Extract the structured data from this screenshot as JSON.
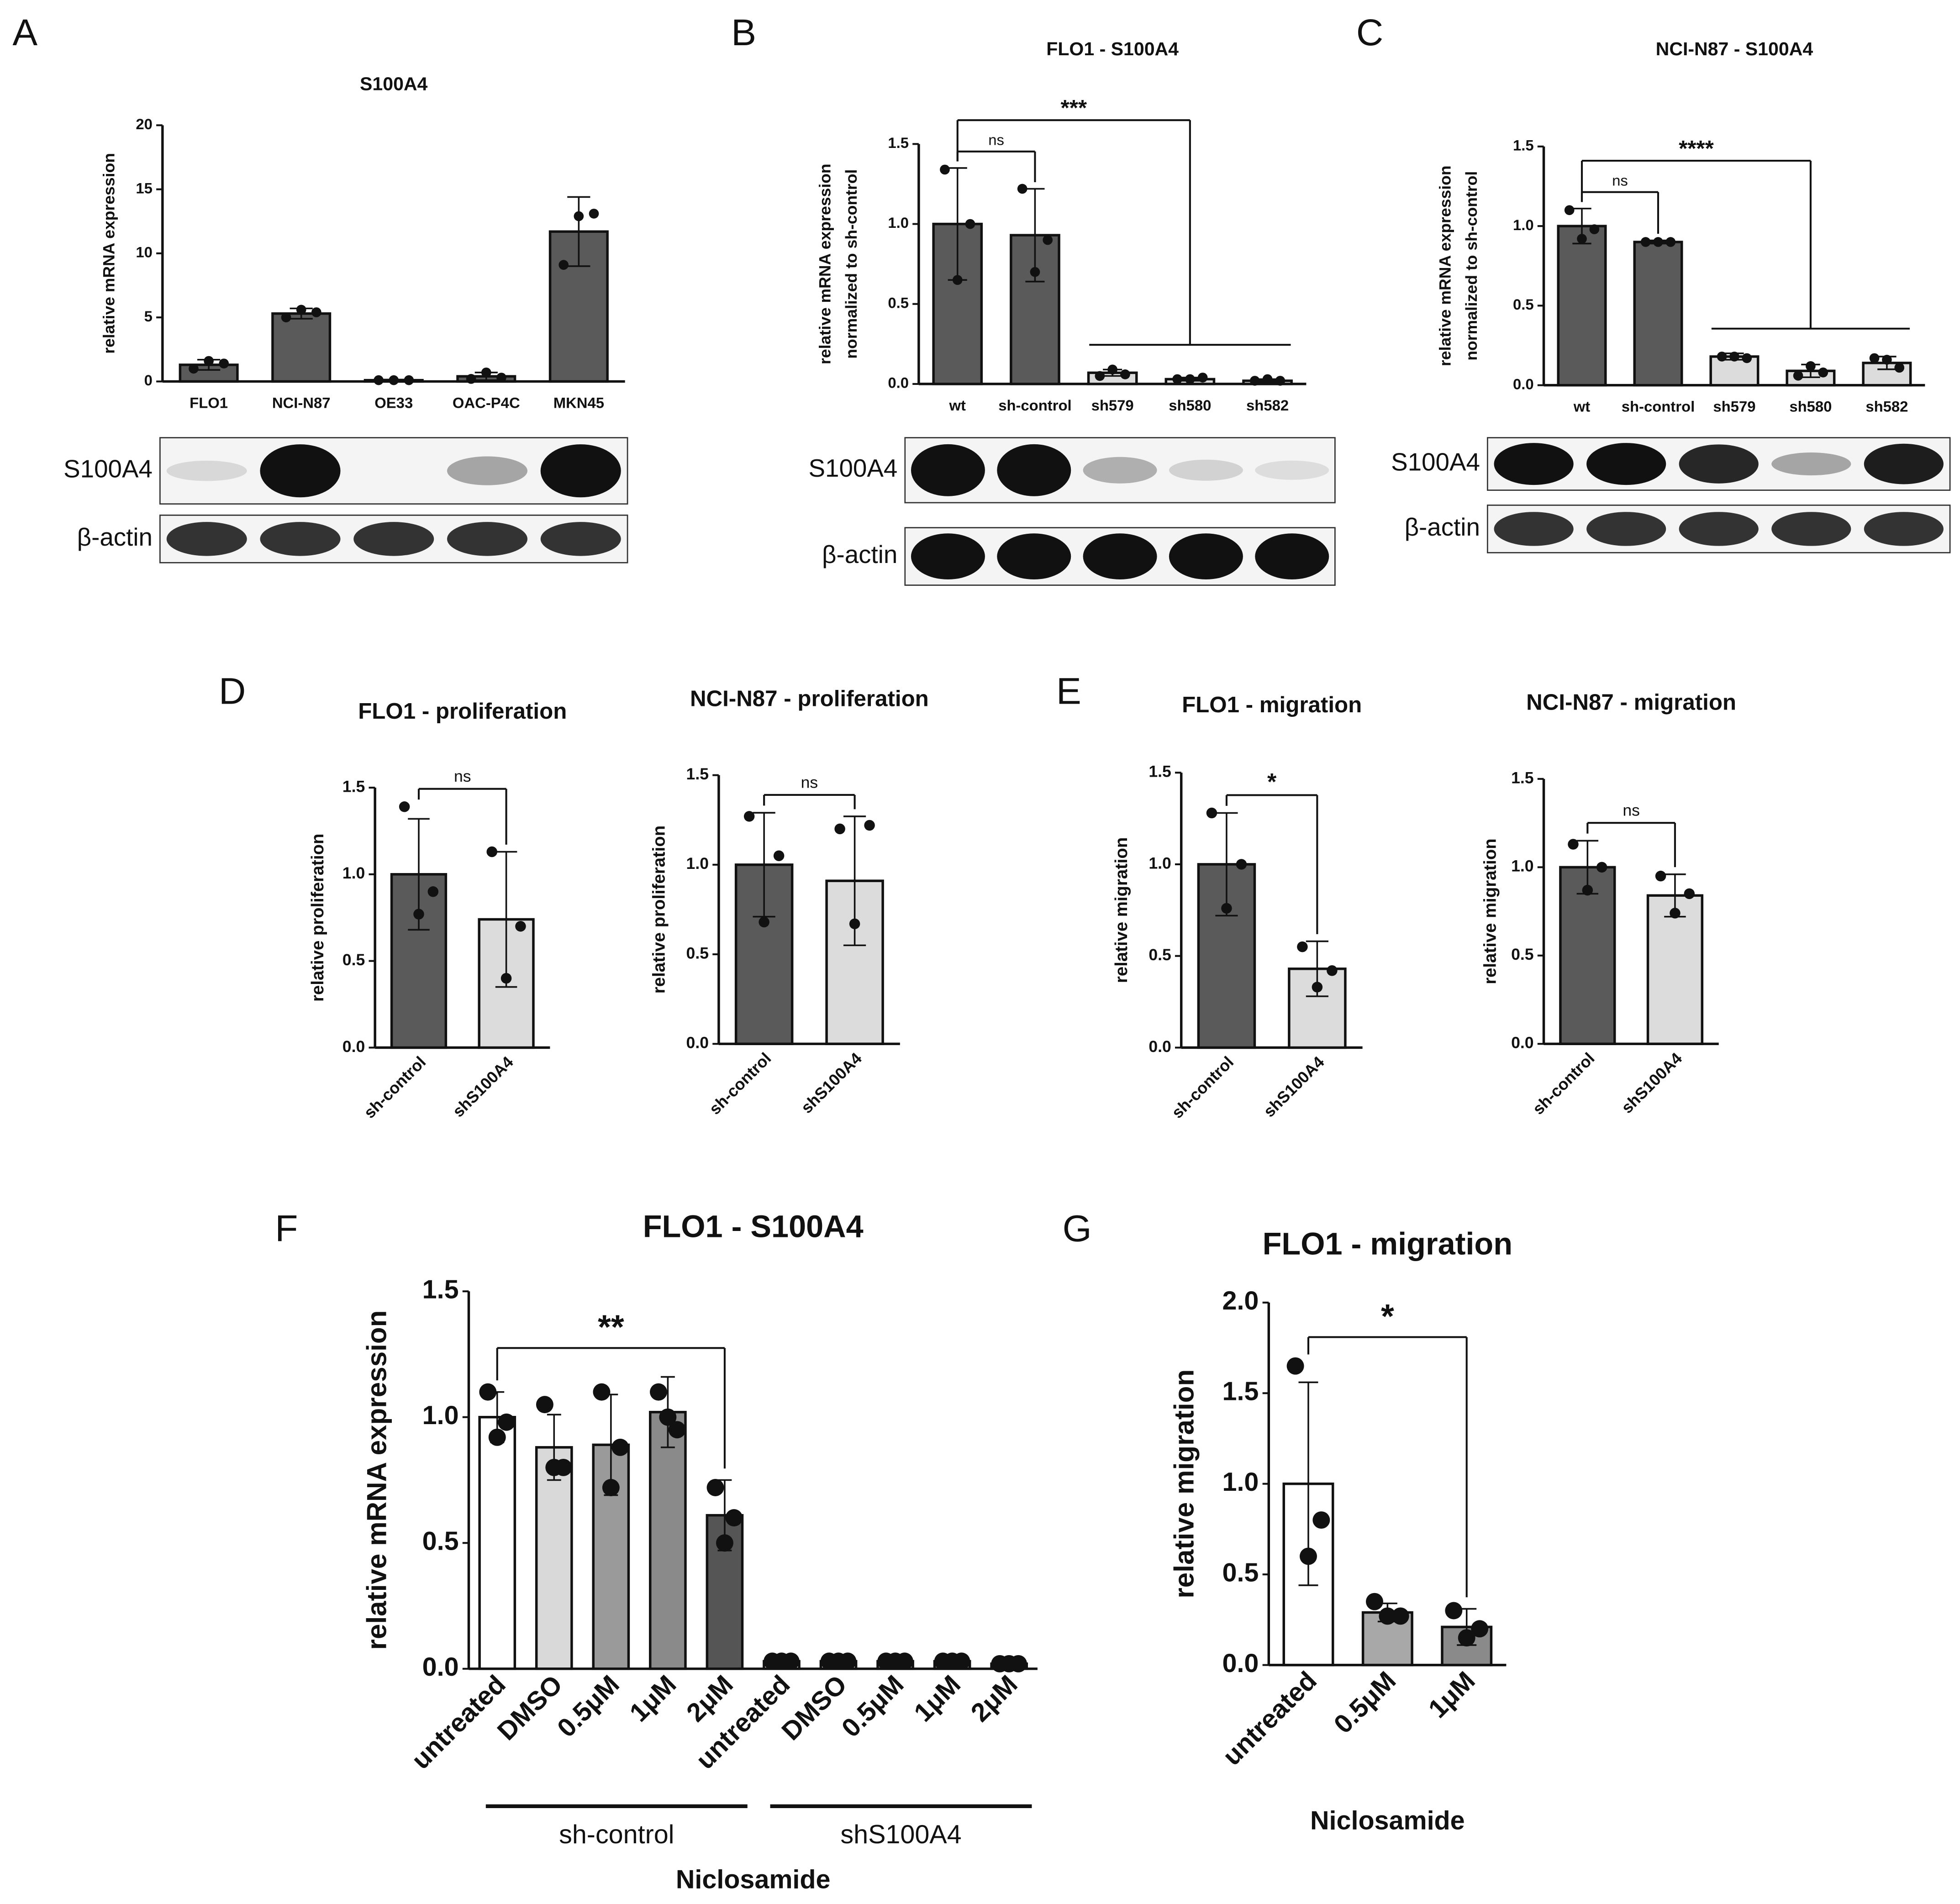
{
  "chart_data": [
    {
      "type": "bar",
      "panel": "A",
      "title": "S100A4",
      "ylabel": [
        "relative mRNA expression"
      ],
      "categories": [
        "FLO1",
        "NCI-N87",
        "OE33",
        "OAC-P4C",
        "MKN45"
      ],
      "values": [
        1.3,
        5.3,
        0.1,
        0.4,
        11.7
      ],
      "errors": [
        0.4,
        0.4,
        0.05,
        0.3,
        2.7
      ],
      "points": [
        [
          1.0,
          1.6,
          1.4
        ],
        [
          5.0,
          5.6,
          5.4
        ],
        [
          0.1,
          0.1,
          0.1
        ],
        [
          0.2,
          0.7,
          0.3
        ],
        [
          9.1,
          12.9,
          13.1
        ]
      ],
      "colors": [
        "#5a5a5a",
        "#5a5a5a",
        "#5a5a5a",
        "#5a5a5a",
        "#5a5a5a"
      ],
      "ylim": [
        0,
        20
      ],
      "yticks": [
        0,
        5,
        10,
        15,
        20
      ],
      "blot_labels": [
        "S100A4",
        "β-actin"
      ]
    },
    {
      "type": "bar",
      "panel": "B",
      "title": "FLO1 - S100A4",
      "ylabel": [
        "relative mRNA expression",
        "normalized to sh-control"
      ],
      "categories": [
        "wt",
        "sh-control",
        "sh579",
        "sh580",
        "sh582"
      ],
      "values": [
        1.0,
        0.93,
        0.07,
        0.03,
        0.02
      ],
      "errors": [
        0.35,
        0.29,
        0.02,
        0.01,
        0.01
      ],
      "points": [
        [
          1.34,
          0.65,
          1.0
        ],
        [
          1.22,
          0.7,
          0.9
        ],
        [
          0.05,
          0.09,
          0.06
        ],
        [
          0.03,
          0.03,
          0.04
        ],
        [
          0.02,
          0.03,
          0.02
        ]
      ],
      "colors": [
        "#5a5a5a",
        "#5a5a5a",
        "#dcdcdc",
        "#dcdcdc",
        "#dcdcdc"
      ],
      "ylim": [
        0,
        1.5
      ],
      "yticks": [
        {
          "value": 0,
          "label": "0.0"
        },
        0.5,
        {
          "value": 1,
          "label": "1.0"
        },
        1.5
      ],
      "significance": [
        {
          "label": "ns",
          "from": "wt",
          "to": "sh-control"
        },
        {
          "label": "***",
          "from": "wt",
          "to": [
            "sh579",
            "sh580",
            "sh582"
          ]
        }
      ],
      "blot_labels": [
        "S100A4",
        "β-actin"
      ]
    },
    {
      "type": "bar",
      "panel": "C",
      "title": "NCI-N87 - S100A4",
      "ylabel": [
        "relative mRNA expression",
        "normalized to sh-control"
      ],
      "categories": [
        "wt",
        "sh-control",
        "sh579",
        "sh580",
        "sh582"
      ],
      "values": [
        1.0,
        0.9,
        0.18,
        0.09,
        0.14
      ],
      "errors": [
        0.11,
        0.01,
        0.02,
        0.04,
        0.04
      ],
      "points": [
        [
          1.1,
          0.92,
          0.98
        ],
        [
          0.9,
          0.9,
          0.9
        ],
        [
          0.18,
          0.18,
          0.17
        ],
        [
          0.06,
          0.12,
          0.08
        ],
        [
          0.17,
          0.16,
          0.11
        ]
      ],
      "colors": [
        "#5a5a5a",
        "#5a5a5a",
        "#dcdcdc",
        "#dcdcdc",
        "#dcdcdc"
      ],
      "ylim": [
        0,
        1.5
      ],
      "yticks": [
        {
          "value": 0,
          "label": "0.0"
        },
        0.5,
        {
          "value": 1,
          "label": "1.0"
        },
        1.5
      ],
      "significance": [
        {
          "label": "ns",
          "from": "wt",
          "to": "sh-control"
        },
        {
          "label": "****",
          "from": "wt",
          "to": [
            "sh579",
            "sh580",
            "sh582"
          ]
        }
      ],
      "blot_labels": [
        "S100A4",
        "β-actin"
      ]
    },
    {
      "type": "bar",
      "panel": "D",
      "title": "FLO1 - proliferation",
      "ylabel": [
        "relative proliferation"
      ],
      "categories": [
        "sh-control",
        "shS100A4"
      ],
      "values": [
        1.0,
        0.74
      ],
      "errors": [
        0.32,
        0.39
      ],
      "points": [
        [
          1.39,
          0.77,
          0.9
        ],
        [
          1.13,
          0.4,
          0.7
        ]
      ],
      "colors": [
        "#5a5a5a",
        "#dcdcdc"
      ],
      "ylim": [
        0,
        1.5
      ],
      "yticks": [
        {
          "value": 0,
          "label": "0.0"
        },
        0.5,
        {
          "value": 1,
          "label": "1.0"
        },
        1.5
      ],
      "significance": [
        {
          "label": "ns",
          "from": "sh-control",
          "to": "shS100A4"
        }
      ],
      "rotated_labels": true
    },
    {
      "type": "bar",
      "title": "NCI-N87 - proliferation",
      "ylabel": [
        "relative proliferation"
      ],
      "categories": [
        "sh-control",
        "shS100A4"
      ],
      "values": [
        1.0,
        0.91
      ],
      "errors": [
        0.29,
        0.36
      ],
      "points": [
        [
          1.27,
          0.68,
          1.05
        ],
        [
          1.2,
          0.67,
          1.22
        ]
      ],
      "colors": [
        "#5a5a5a",
        "#dcdcdc"
      ],
      "ylim": [
        0,
        1.5
      ],
      "yticks": [
        {
          "value": 0,
          "label": "0.0"
        },
        0.5,
        {
          "value": 1,
          "label": "1.0"
        },
        1.5
      ],
      "significance": [
        {
          "label": "ns",
          "from": "sh-control",
          "to": "shS100A4"
        }
      ],
      "rotated_labels": true
    },
    {
      "type": "bar",
      "panel": "E",
      "title": "FLO1 - migration",
      "ylabel": [
        "relative migration"
      ],
      "categories": [
        "sh-control",
        "shS100A4"
      ],
      "values": [
        1.0,
        0.43
      ],
      "errors": [
        0.28,
        0.15
      ],
      "points": [
        [
          1.28,
          0.76,
          1.0
        ],
        [
          0.55,
          0.33,
          0.42
        ]
      ],
      "colors": [
        "#5a5a5a",
        "#dcdcdc"
      ],
      "ylim": [
        0,
        1.5
      ],
      "yticks": [
        {
          "value": 0,
          "label": "0.0"
        },
        0.5,
        {
          "value": 1,
          "label": "1.0"
        },
        1.5
      ],
      "significance": [
        {
          "label": "*",
          "from": "sh-control",
          "to": "shS100A4"
        }
      ],
      "rotated_labels": true
    },
    {
      "type": "bar",
      "title": "NCI-N87 - migration",
      "ylabel": [
        "relative migration"
      ],
      "categories": [
        "sh-control",
        "shS100A4"
      ],
      "values": [
        1.0,
        0.84
      ],
      "errors": [
        0.15,
        0.12
      ],
      "points": [
        [
          1.13,
          0.87,
          1.0
        ],
        [
          0.95,
          0.74,
          0.85
        ]
      ],
      "colors": [
        "#5a5a5a",
        "#dcdcdc"
      ],
      "ylim": [
        0,
        1.5
      ],
      "yticks": [
        {
          "value": 0,
          "label": "0.0"
        },
        0.5,
        {
          "value": 1,
          "label": "1.0"
        },
        1.5
      ],
      "significance": [
        {
          "label": "ns",
          "from": "sh-control",
          "to": "shS100A4"
        }
      ],
      "rotated_labels": true
    },
    {
      "type": "bar",
      "panel": "F",
      "title": "FLO1 - S100A4",
      "ylabel": [
        "relative mRNA expression"
      ],
      "xlabel": "Niclosamide",
      "categories": [
        "untreated",
        "DMSO",
        "0.5μM",
        "1μM",
        "2μM",
        "untreated",
        "DMSO",
        "0.5μM",
        "1μM",
        "2μM"
      ],
      "values": [
        1.0,
        0.88,
        0.89,
        1.02,
        0.61,
        0.03,
        0.03,
        0.03,
        0.03,
        0.02
      ],
      "errors": [
        0.1,
        0.13,
        0.2,
        0.14,
        0.14,
        0.005,
        0.005,
        0.005,
        0.005,
        0.005
      ],
      "points": [
        [
          1.1,
          0.92,
          0.98
        ],
        [
          1.05,
          0.8,
          0.8
        ],
        [
          1.1,
          0.72,
          0.88
        ],
        [
          1.1,
          1.0,
          0.95
        ],
        [
          0.72,
          0.5,
          0.6
        ],
        [
          0.03,
          0.03,
          0.03
        ],
        [
          0.03,
          0.03,
          0.03
        ],
        [
          0.03,
          0.03,
          0.03
        ],
        [
          0.03,
          0.03,
          0.03
        ],
        [
          0.02,
          0.02,
          0.02
        ]
      ],
      "colors": [
        "#ffffff",
        "#d9d9d9",
        "#9a9a9a",
        "#8a8a8a",
        "#555555",
        "#ffffff",
        "#d9d9d9",
        "#9a9a9a",
        "#8a8a8a",
        "#555555"
      ],
      "ylim": [
        0,
        1.5
      ],
      "yticks": [
        {
          "value": 0,
          "label": "0.0"
        },
        0.5,
        {
          "value": 1,
          "label": "1.0"
        },
        1.5
      ],
      "significance": [
        {
          "label": "**",
          "from": "untreated",
          "to": "2μM"
        }
      ],
      "groups": [
        "sh-control",
        "shS100A4"
      ],
      "rotated_labels": true
    },
    {
      "type": "bar",
      "panel": "G",
      "title": "FLO1 - migration",
      "ylabel": [
        "relative migration"
      ],
      "xlabel": "Niclosamide",
      "categories": [
        "untreated",
        "0.5μM",
        "1μM"
      ],
      "values": [
        1.0,
        0.29,
        0.21
      ],
      "errors": [
        0.56,
        0.05,
        0.1
      ],
      "points": [
        [
          1.65,
          0.6,
          0.8
        ],
        [
          0.35,
          0.27,
          0.27
        ],
        [
          0.3,
          0.15,
          0.2
        ]
      ],
      "colors": [
        "#ffffff",
        "#a8a8a8",
        "#8a8a8a"
      ],
      "ylim": [
        0,
        2
      ],
      "yticks": [
        {
          "value": 0,
          "label": "0.0"
        },
        0.5,
        {
          "value": 1,
          "label": "1.0"
        },
        1.5,
        {
          "value": 2,
          "label": "2.0"
        }
      ],
      "significance": [
        {
          "label": "*",
          "from": "untreated",
          "to": "1μM"
        }
      ],
      "rotated_labels": true
    }
  ]
}
